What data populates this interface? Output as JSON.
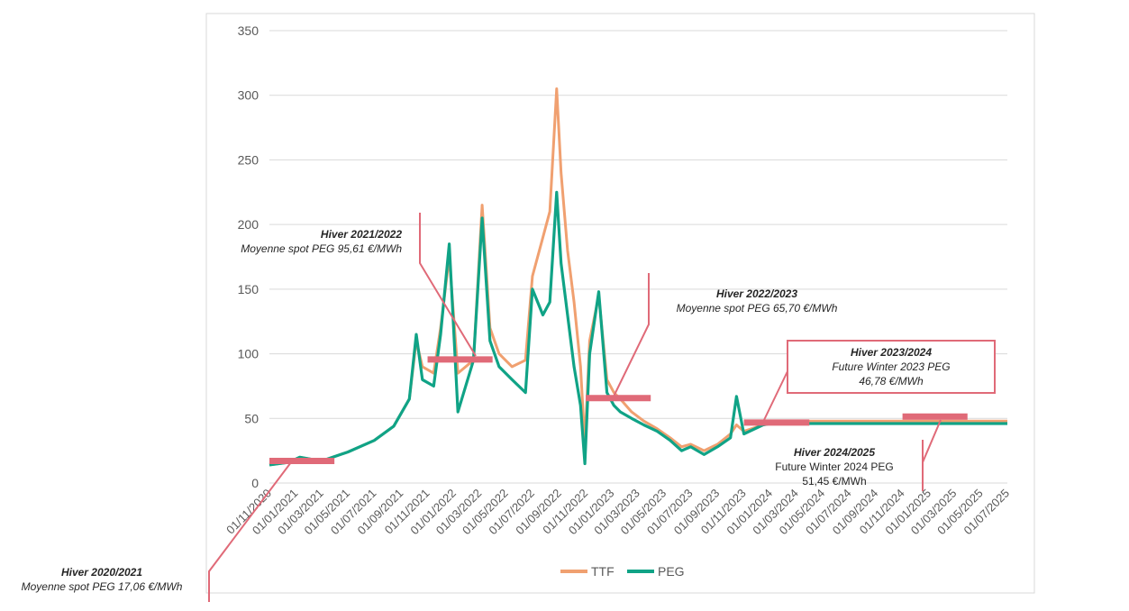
{
  "colors": {
    "TTF": "#f0a070",
    "PEG": "#10a386",
    "annotation": "#e06a78",
    "grid": "#d9d9d9"
  },
  "chart_data": {
    "type": "line",
    "title": "",
    "xlabel": "",
    "ylabel": "",
    "ylim": [
      0,
      350
    ],
    "yticks": [
      0,
      50,
      100,
      150,
      200,
      250,
      300,
      350
    ],
    "xlim": [
      "2020-11-01",
      "2025-07-01"
    ],
    "xticks": [
      "01/11/2020",
      "01/01/2021",
      "01/03/2021",
      "01/05/2021",
      "01/07/2021",
      "01/09/2021",
      "01/11/2021",
      "01/01/2022",
      "01/03/2022",
      "01/05/2022",
      "01/07/2022",
      "01/09/2022",
      "01/11/2022",
      "01/01/2023",
      "01/03/2023",
      "01/05/2023",
      "01/07/2023",
      "01/09/2023",
      "01/11/2023",
      "01/01/2024",
      "01/03/2024",
      "01/05/2024",
      "01/07/2024",
      "01/09/2024",
      "01/11/2024",
      "01/01/2025",
      "01/03/2025",
      "01/05/2025",
      "01/07/2025"
    ],
    "grid": true,
    "legend": {
      "position": "bottom",
      "entries": [
        "TTF",
        "PEG"
      ]
    },
    "series": [
      {
        "name": "TTF",
        "x": [
          "2020-11-01",
          "2020-12-15",
          "2021-01-10",
          "2021-03-01",
          "2021-05-01",
          "2021-07-01",
          "2021-08-15",
          "2021-09-20",
          "2021-10-06",
          "2021-10-20",
          "2021-11-15",
          "2021-12-01",
          "2021-12-21",
          "2022-01-10",
          "2022-02-15",
          "2022-03-07",
          "2022-03-25",
          "2022-04-15",
          "2022-05-15",
          "2022-06-15",
          "2022-07-01",
          "2022-07-25",
          "2022-08-10",
          "2022-08-26",
          "2022-09-05",
          "2022-09-20",
          "2022-10-05",
          "2022-10-20",
          "2022-10-30",
          "2022-11-10",
          "2022-12-01",
          "2022-12-20",
          "2023-01-05",
          "2023-01-20",
          "2023-02-15",
          "2023-03-15",
          "2023-04-15",
          "2023-05-15",
          "2023-06-10",
          "2023-07-01",
          "2023-08-01",
          "2023-09-01",
          "2023-10-01",
          "2023-10-15",
          "2023-11-01",
          "2023-12-15",
          "2024-01-01",
          "2025-07-01"
        ],
        "y": [
          14,
          16,
          20,
          17,
          24,
          33,
          44,
          65,
          110,
          90,
          85,
          120,
          175,
          85,
          95,
          215,
          120,
          100,
          90,
          95,
          160,
          190,
          210,
          305,
          240,
          180,
          140,
          90,
          30,
          110,
          145,
          80,
          70,
          65,
          55,
          48,
          42,
          35,
          28,
          30,
          25,
          30,
          38,
          45,
          40,
          45,
          48,
          48
        ]
      },
      {
        "name": "PEG",
        "x": [
          "2020-11-01",
          "2020-12-15",
          "2021-01-10",
          "2021-03-01",
          "2021-05-01",
          "2021-07-01",
          "2021-08-15",
          "2021-09-20",
          "2021-10-06",
          "2021-10-20",
          "2021-11-15",
          "2021-12-01",
          "2021-12-21",
          "2022-01-10",
          "2022-02-15",
          "2022-03-07",
          "2022-03-25",
          "2022-04-15",
          "2022-05-15",
          "2022-06-15",
          "2022-07-01",
          "2022-07-25",
          "2022-08-10",
          "2022-08-26",
          "2022-09-05",
          "2022-09-20",
          "2022-10-05",
          "2022-10-20",
          "2022-10-30",
          "2022-11-10",
          "2022-12-01",
          "2022-12-20",
          "2023-01-05",
          "2023-01-20",
          "2023-02-15",
          "2023-03-15",
          "2023-04-15",
          "2023-05-15",
          "2023-06-10",
          "2023-07-01",
          "2023-08-01",
          "2023-09-01",
          "2023-10-01",
          "2023-10-15",
          "2023-11-01",
          "2023-12-15",
          "2024-01-01",
          "2025-07-01"
        ],
        "y": [
          14,
          16,
          20,
          17,
          24,
          33,
          44,
          65,
          115,
          80,
          75,
          115,
          185,
          55,
          95,
          205,
          110,
          90,
          80,
          70,
          150,
          130,
          140,
          225,
          170,
          130,
          90,
          60,
          15,
          100,
          148,
          70,
          60,
          55,
          50,
          45,
          40,
          33,
          25,
          28,
          22,
          28,
          35,
          67,
          38,
          45,
          46,
          46
        ]
      }
    ],
    "annotations": [
      {
        "title": "Hiver 2020/2021",
        "text": "Moyenne spot PEG 17,06 €/MWh",
        "value": 17.06,
        "from": "2020-11-01",
        "to": "2021-03-31"
      },
      {
        "title": "Hiver 2021/2022",
        "text": "Moyenne spot PEG 95,61 €/MWh",
        "value": 95.61,
        "from": "2021-11-01",
        "to": "2022-03-31"
      },
      {
        "title": "Hiver 2022/2023",
        "text": "Moyenne spot PEG 65,70 €/MWh",
        "value": 65.7,
        "from": "2022-11-01",
        "to": "2023-03-31"
      },
      {
        "title": "Hiver 2023/2024",
        "text": "Future Winter 2023 PEG",
        "text2": "46,78 €/MWh",
        "value": 46.78,
        "from": "2023-11-01",
        "to": "2024-03-31"
      },
      {
        "title": "Hiver 2024/2025",
        "text": "Future Winter 2024 PEG",
        "text2": "51,45 €/MWh",
        "value": 51.45,
        "from": "2024-11-01",
        "to": "2025-03-31"
      }
    ]
  }
}
